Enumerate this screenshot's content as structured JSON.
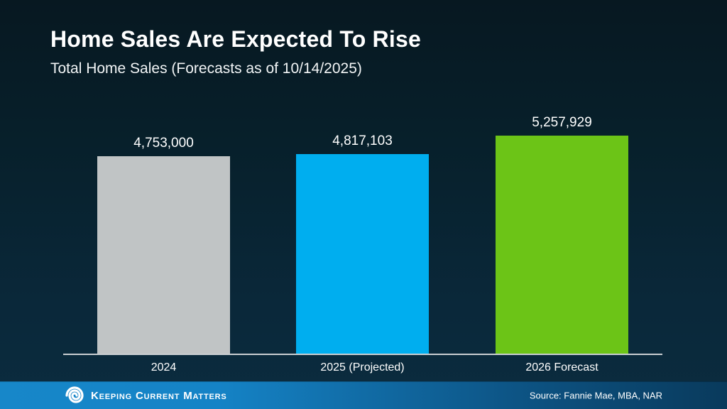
{
  "slide": {
    "title": "Home Sales Are Expected To Rise",
    "subtitle": "Total Home Sales (Forecasts as of 10/14/2025)"
  },
  "chart_data": {
    "type": "bar",
    "title": "Home Sales Are Expected To Rise",
    "subtitle": "Total Home Sales (Forecasts as of 10/14/2025)",
    "categories": [
      "2024",
      "2025 (Projected)",
      "2026 Forecast"
    ],
    "values": [
      4753000,
      4817103,
      5257929
    ],
    "value_labels": [
      "4,753,000",
      "4,817,103",
      "5,257,929"
    ],
    "bar_colors": [
      "#C0C4C5",
      "#00AEEF",
      "#6CC417"
    ],
    "ylim": [
      0,
      5257929
    ],
    "grid": false,
    "legend": false,
    "baseline_axis_color": "#C9CED2",
    "label_color": "#FFFFFF"
  },
  "footer": {
    "logo_icon": "kcm-swirl-icon",
    "brand": "Keeping Current Matters",
    "source": "Source: Fannie Mae, MBA, NAR",
    "bar_color_left": "#1583C6",
    "bar_color_right": "#093A5C"
  },
  "colors": {
    "background_top": "#071821",
    "background_bottom": "#0B2C3F",
    "title_text": "#FFFFFF"
  }
}
